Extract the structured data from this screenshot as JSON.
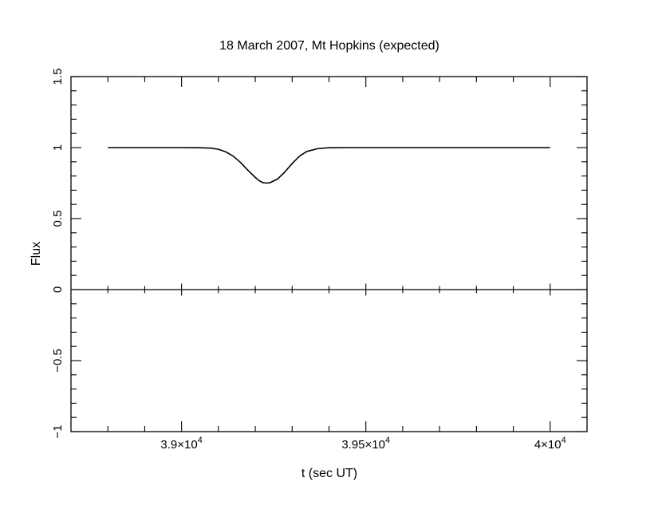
{
  "chart_data": {
    "type": "line",
    "title": "18 March 2007, Mt Hopkins (expected)",
    "xlabel": "t (sec UT)",
    "ylabel": "Flux",
    "xlim": [
      38700,
      40100
    ],
    "ylim": [
      -1,
      1.5
    ],
    "x_ticks": [
      {
        "value": 39000,
        "mantissa": "3.9",
        "exponent": "4"
      },
      {
        "value": 39500,
        "mantissa": "3.95",
        "exponent": "4"
      },
      {
        "value": 40000,
        "mantissa": "4",
        "exponent": "4"
      }
    ],
    "y_ticks": [
      {
        "value": -1,
        "label": "−1"
      },
      {
        "value": -0.5,
        "label": "−0.5"
      },
      {
        "value": 0,
        "label": "0"
      },
      {
        "value": 0.5,
        "label": "0.5"
      },
      {
        "value": 1,
        "label": "1"
      },
      {
        "value": 1.5,
        "label": "1.5"
      }
    ],
    "zero_line": true,
    "grid": false,
    "series": [
      {
        "x": [
          38800,
          39000,
          39050,
          39080,
          39100,
          39120,
          39140,
          39160,
          39180,
          39200,
          39210,
          39220,
          39230,
          39240,
          39260,
          39280,
          39300,
          39320,
          39340,
          39370,
          39400,
          39450,
          39600,
          39800,
          40000
        ],
        "y": [
          1.0,
          1.0,
          0.999,
          0.996,
          0.988,
          0.97,
          0.94,
          0.895,
          0.84,
          0.79,
          0.768,
          0.754,
          0.75,
          0.753,
          0.778,
          0.828,
          0.888,
          0.94,
          0.973,
          0.993,
          0.999,
          1.0,
          1.0,
          1.0,
          1.0
        ]
      }
    ]
  }
}
